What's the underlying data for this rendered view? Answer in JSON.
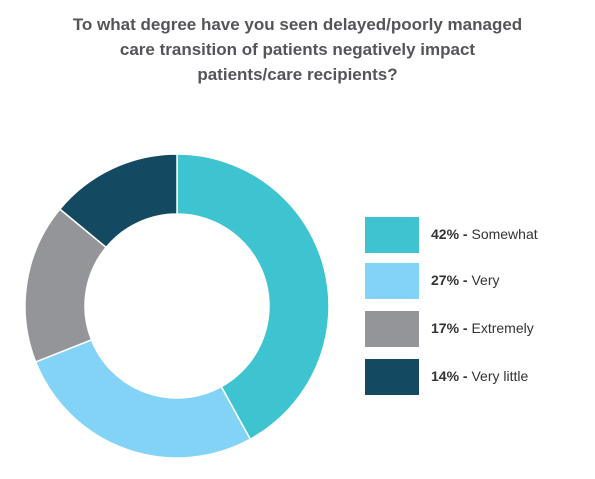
{
  "chart_data": {
    "type": "pie",
    "variant": "donut",
    "title_lines": [
      "To what degree have you seen delayed/poorly managed",
      "care transition of patients negatively impact",
      "patients/care recipients?"
    ],
    "slices": [
      {
        "label": "Somewhat",
        "value": 42,
        "value_label": "42%",
        "color": "#3EC3D1"
      },
      {
        "label": "Very",
        "value": 27,
        "value_label": "27%",
        "color": "#82D3F5"
      },
      {
        "label": "Extremely",
        "value": 17,
        "value_label": "17%",
        "color": "#939598"
      },
      {
        "label": "Very little",
        "value": 14,
        "value_label": "14%",
        "color": "#134A62"
      }
    ],
    "legend_position": "right",
    "legend_separator": " - "
  }
}
